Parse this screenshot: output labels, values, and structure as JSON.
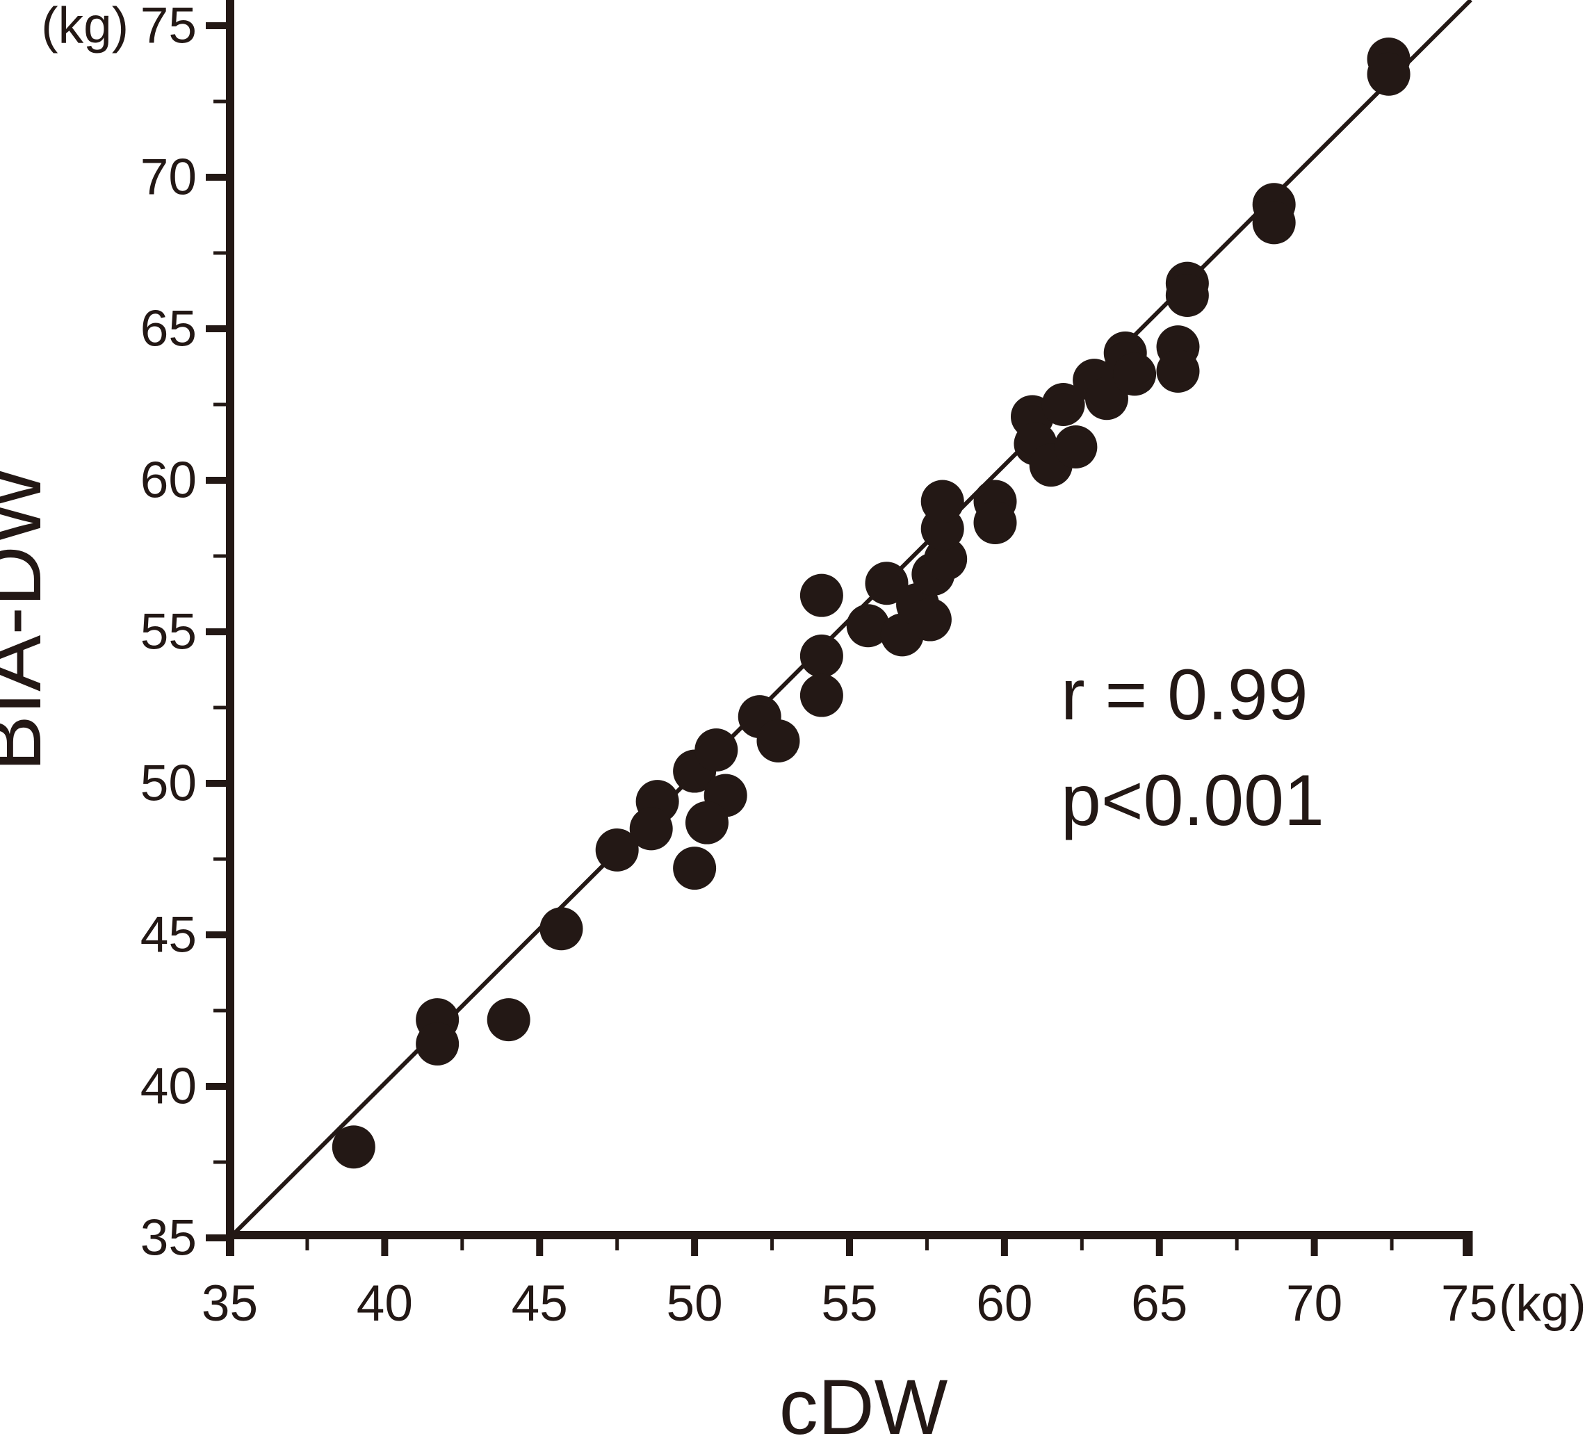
{
  "figure": {
    "background": "#ffffff",
    "ink_color": "#231815",
    "x_title": "cDW",
    "y_title": "BIA-DW",
    "x_axis_unit": "(kg)",
    "y_axis_unit": "(kg)",
    "annotation_r": "r = 0.99",
    "annotation_p": "p<0.001"
  },
  "chart_data": {
    "type": "scatter",
    "title": "",
    "xlabel": "cDW",
    "ylabel": "BIA-DW",
    "x_unit": "kg",
    "y_unit": "kg",
    "xlim": [
      35,
      75
    ],
    "ylim": [
      35,
      75
    ],
    "grid": false,
    "x_major_ticks": [
      35,
      40,
      45,
      50,
      55,
      60,
      65,
      70,
      75
    ],
    "y_major_ticks": [
      35,
      40,
      45,
      50,
      55,
      60,
      65,
      70,
      75
    ],
    "x_minor_ticks": [
      37.5,
      42.5,
      47.5,
      52.5,
      57.5,
      62.5,
      67.5,
      72.5
    ],
    "y_minor_ticks": [
      37.5,
      42.5,
      47.5,
      52.5,
      57.5,
      62.5,
      67.5,
      72.5
    ],
    "fit_line": {
      "slope": 1.02,
      "intercept": -0.7,
      "x_start": 35,
      "x_end": 75.05
    },
    "stats": {
      "r": "0.99",
      "p": "<0.001"
    },
    "points": [
      [
        39.0,
        38.0
      ],
      [
        41.7,
        42.2
      ],
      [
        41.7,
        41.4
      ],
      [
        44.0,
        42.2
      ],
      [
        45.7,
        45.2
      ],
      [
        47.5,
        47.8
      ],
      [
        48.8,
        49.4
      ],
      [
        48.6,
        48.5
      ],
      [
        50.0,
        50.4
      ],
      [
        50.7,
        51.1
      ],
      [
        51.0,
        49.6
      ],
      [
        50.4,
        48.7
      ],
      [
        50.0,
        47.2
      ],
      [
        52.1,
        52.2
      ],
      [
        52.7,
        51.4
      ],
      [
        54.1,
        56.2
      ],
      [
        54.1,
        54.2
      ],
      [
        54.1,
        52.9
      ],
      [
        55.6,
        55.2
      ],
      [
        56.2,
        56.6
      ],
      [
        56.7,
        54.9
      ],
      [
        57.2,
        55.9
      ],
      [
        57.6,
        55.4
      ],
      [
        57.7,
        56.9
      ],
      [
        58.1,
        57.4
      ],
      [
        58.0,
        58.4
      ],
      [
        58.0,
        59.3
      ],
      [
        59.7,
        59.3
      ],
      [
        59.7,
        58.6
      ],
      [
        60.9,
        62.1
      ],
      [
        61.9,
        62.5
      ],
      [
        61.0,
        61.2
      ],
      [
        61.5,
        60.5
      ],
      [
        62.3,
        61.1
      ],
      [
        62.9,
        63.3
      ],
      [
        63.3,
        62.7
      ],
      [
        63.9,
        64.2
      ],
      [
        64.2,
        63.5
      ],
      [
        65.6,
        64.4
      ],
      [
        65.6,
        63.6
      ],
      [
        65.9,
        66.5
      ],
      [
        65.9,
        66.1
      ],
      [
        68.7,
        69.1
      ],
      [
        68.7,
        68.5
      ],
      [
        72.4,
        73.9
      ],
      [
        72.4,
        73.4
      ]
    ]
  }
}
